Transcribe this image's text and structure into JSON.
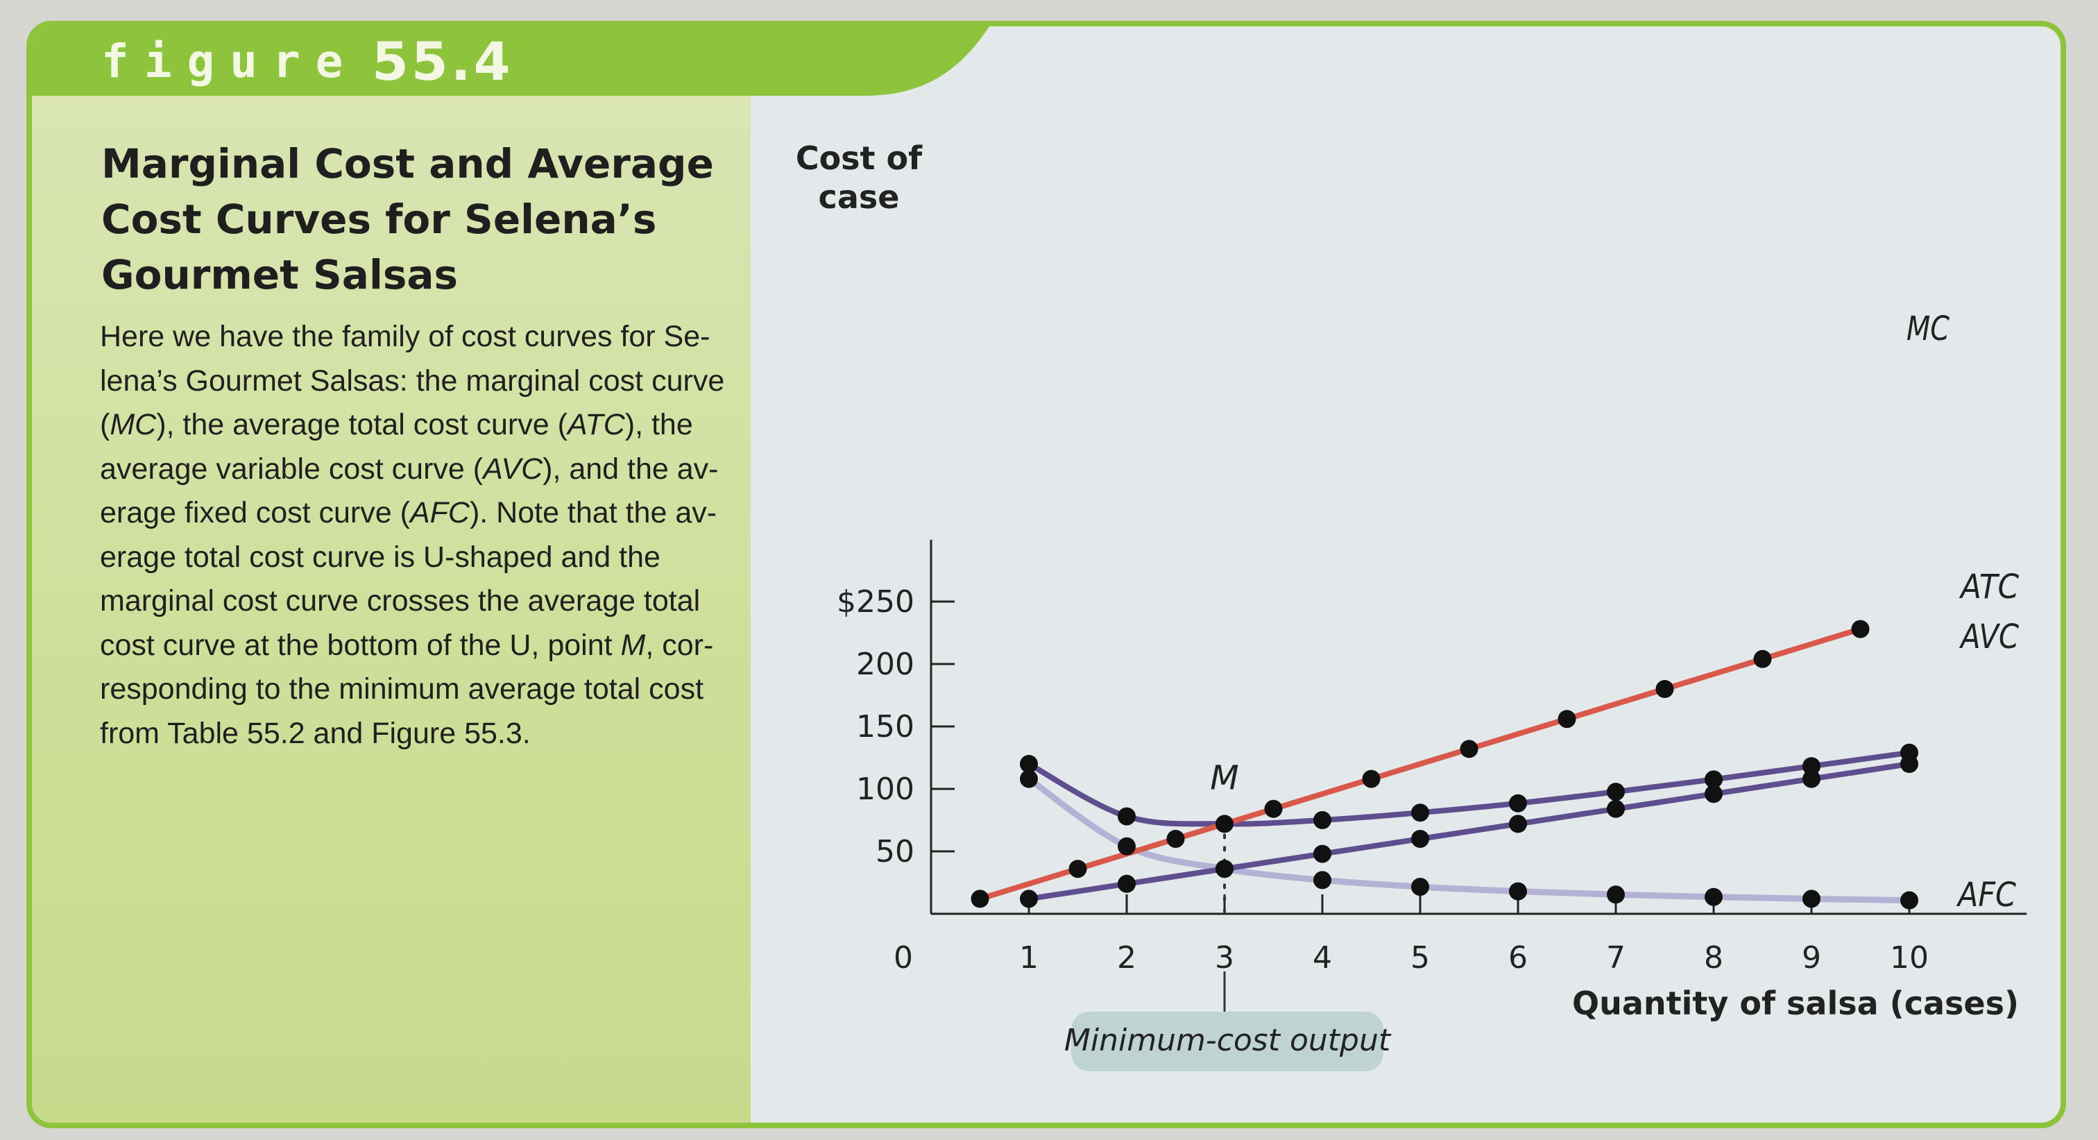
{
  "figure": {
    "label": "figure",
    "number": "55.4"
  },
  "title": "Marginal Cost and Average Cost Curves for Selena’s Gourmet Salsas",
  "caption": {
    "text_1": "Here we have the family of cost curves for Se-lena’s Gourmet Salsas: the marginal cost curve (",
    "mc": "MC",
    "text_2": "), the average total cost curve (",
    "atc": "ATC",
    "text_3": "), the average variable cost curve (",
    "avc": "AVC",
    "text_4": "), and the av-erage fixed cost curve (",
    "afc": "AFC",
    "text_5": "). Note that the av-erage total cost curve is U-shaped and the marginal cost curve crosses the average total cost curve at the bottom of the U, point ",
    "m": "M",
    "text_6": ", cor-responding to the minimum average total cost from Table 55.2 and Figure 55.3."
  },
  "colors": {
    "accent_green": "#8dc43c",
    "mc_line": "#d9584a",
    "atc_avc_line": "#5f4e8f",
    "afc_line": "#b4b1d6",
    "dot": "#111111",
    "callout_bg": "#bfd3d2"
  },
  "chart_data": {
    "type": "line",
    "title": "",
    "xlabel": "Quantity of salsa (cases)",
    "ylabel": "Cost of case",
    "x_ticks": [
      1,
      2,
      3,
      4,
      5,
      6,
      7,
      8,
      9,
      10
    ],
    "origin_label": "0",
    "y_ticks": [
      {
        "value": 50,
        "label": "50"
      },
      {
        "value": 100,
        "label": "100"
      },
      {
        "value": 150,
        "label": "150"
      },
      {
        "value": 200,
        "label": "200"
      },
      {
        "value": 250,
        "label": "$250"
      }
    ],
    "xlim": [
      0,
      11.2
    ],
    "ylim": [
      0,
      300
    ],
    "grid": false,
    "series": [
      {
        "name": "MC",
        "color_key": "mc_line",
        "points": [
          [
            0.5,
            12
          ],
          [
            1.5,
            36
          ],
          [
            2.5,
            60
          ],
          [
            3.5,
            84
          ],
          [
            4.5,
            108
          ],
          [
            5.5,
            132
          ],
          [
            6.5,
            156
          ],
          [
            7.5,
            180
          ],
          [
            8.5,
            204
          ],
          [
            9.5,
            228
          ]
        ]
      },
      {
        "name": "ATC",
        "color_key": "atc_avc_line",
        "points": [
          [
            1,
            120
          ],
          [
            2,
            78
          ],
          [
            3,
            72
          ],
          [
            4,
            75
          ],
          [
            5,
            81
          ],
          [
            6,
            88.5
          ],
          [
            7,
            97.7
          ],
          [
            8,
            107.6
          ],
          [
            9,
            118.2
          ],
          [
            10,
            129
          ]
        ]
      },
      {
        "name": "AVC",
        "color_key": "atc_avc_line",
        "points": [
          [
            1,
            12
          ],
          [
            2,
            24
          ],
          [
            3,
            36
          ],
          [
            4,
            48
          ],
          [
            5,
            60
          ],
          [
            6,
            72
          ],
          [
            7,
            84
          ],
          [
            8,
            96
          ],
          [
            9,
            108
          ],
          [
            10,
            120
          ]
        ]
      },
      {
        "name": "AFC",
        "color_key": "afc_line",
        "points": [
          [
            1,
            108
          ],
          [
            2,
            54
          ],
          [
            3,
            36
          ],
          [
            4,
            27
          ],
          [
            5,
            21.6
          ],
          [
            6,
            18
          ],
          [
            7,
            15.4
          ],
          [
            8,
            13.5
          ],
          [
            9,
            12
          ],
          [
            10,
            10.8
          ]
        ]
      }
    ],
    "annotations": {
      "point_label": "M",
      "point": [
        3,
        72
      ],
      "callout": "Minimum-cost output",
      "callout_x": 3
    }
  }
}
